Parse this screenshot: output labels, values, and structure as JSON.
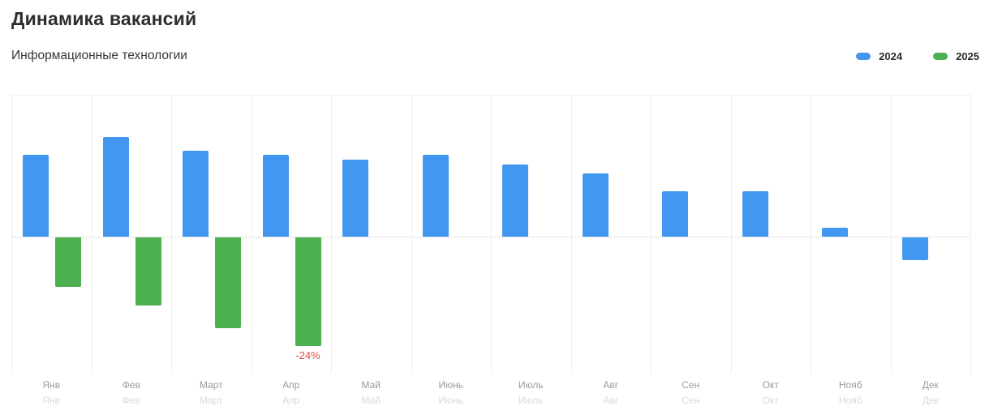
{
  "header": {
    "title": "Динамика вакансий",
    "subtitle": "Информационные технологии"
  },
  "legend": [
    {
      "label": "2024",
      "color": "#4297f0"
    },
    {
      "label": "2025",
      "color": "#4caf50"
    }
  ],
  "chart_data": {
    "type": "bar",
    "title": "Динамика вакансий",
    "subtitle": "Информационные технологии",
    "unit": "%",
    "categories": [
      "Янв",
      "Фев",
      "Март",
      "Апр",
      "Май",
      "Июнь",
      "Июль",
      "Авг",
      "Сен",
      "Окт",
      "Нояб",
      "Дек"
    ],
    "series": [
      {
        "name": "2024",
        "color": "#4297f0",
        "values": [
          18,
          22,
          19,
          18,
          17,
          18,
          16,
          14,
          10,
          10,
          2,
          -5
        ]
      },
      {
        "name": "2025",
        "color": "#4caf50",
        "values": [
          -11,
          -15,
          -20,
          -24,
          null,
          null,
          null,
          null,
          null,
          null,
          null,
          null
        ]
      }
    ],
    "annotations": [
      {
        "series": "2025",
        "category_index": 3,
        "text": "-24%",
        "color": "#dd4b4b"
      }
    ],
    "ylim": [
      -31,
      31
    ],
    "grid": "vertical-only",
    "baseline": 0,
    "legend_position": "top-right"
  }
}
